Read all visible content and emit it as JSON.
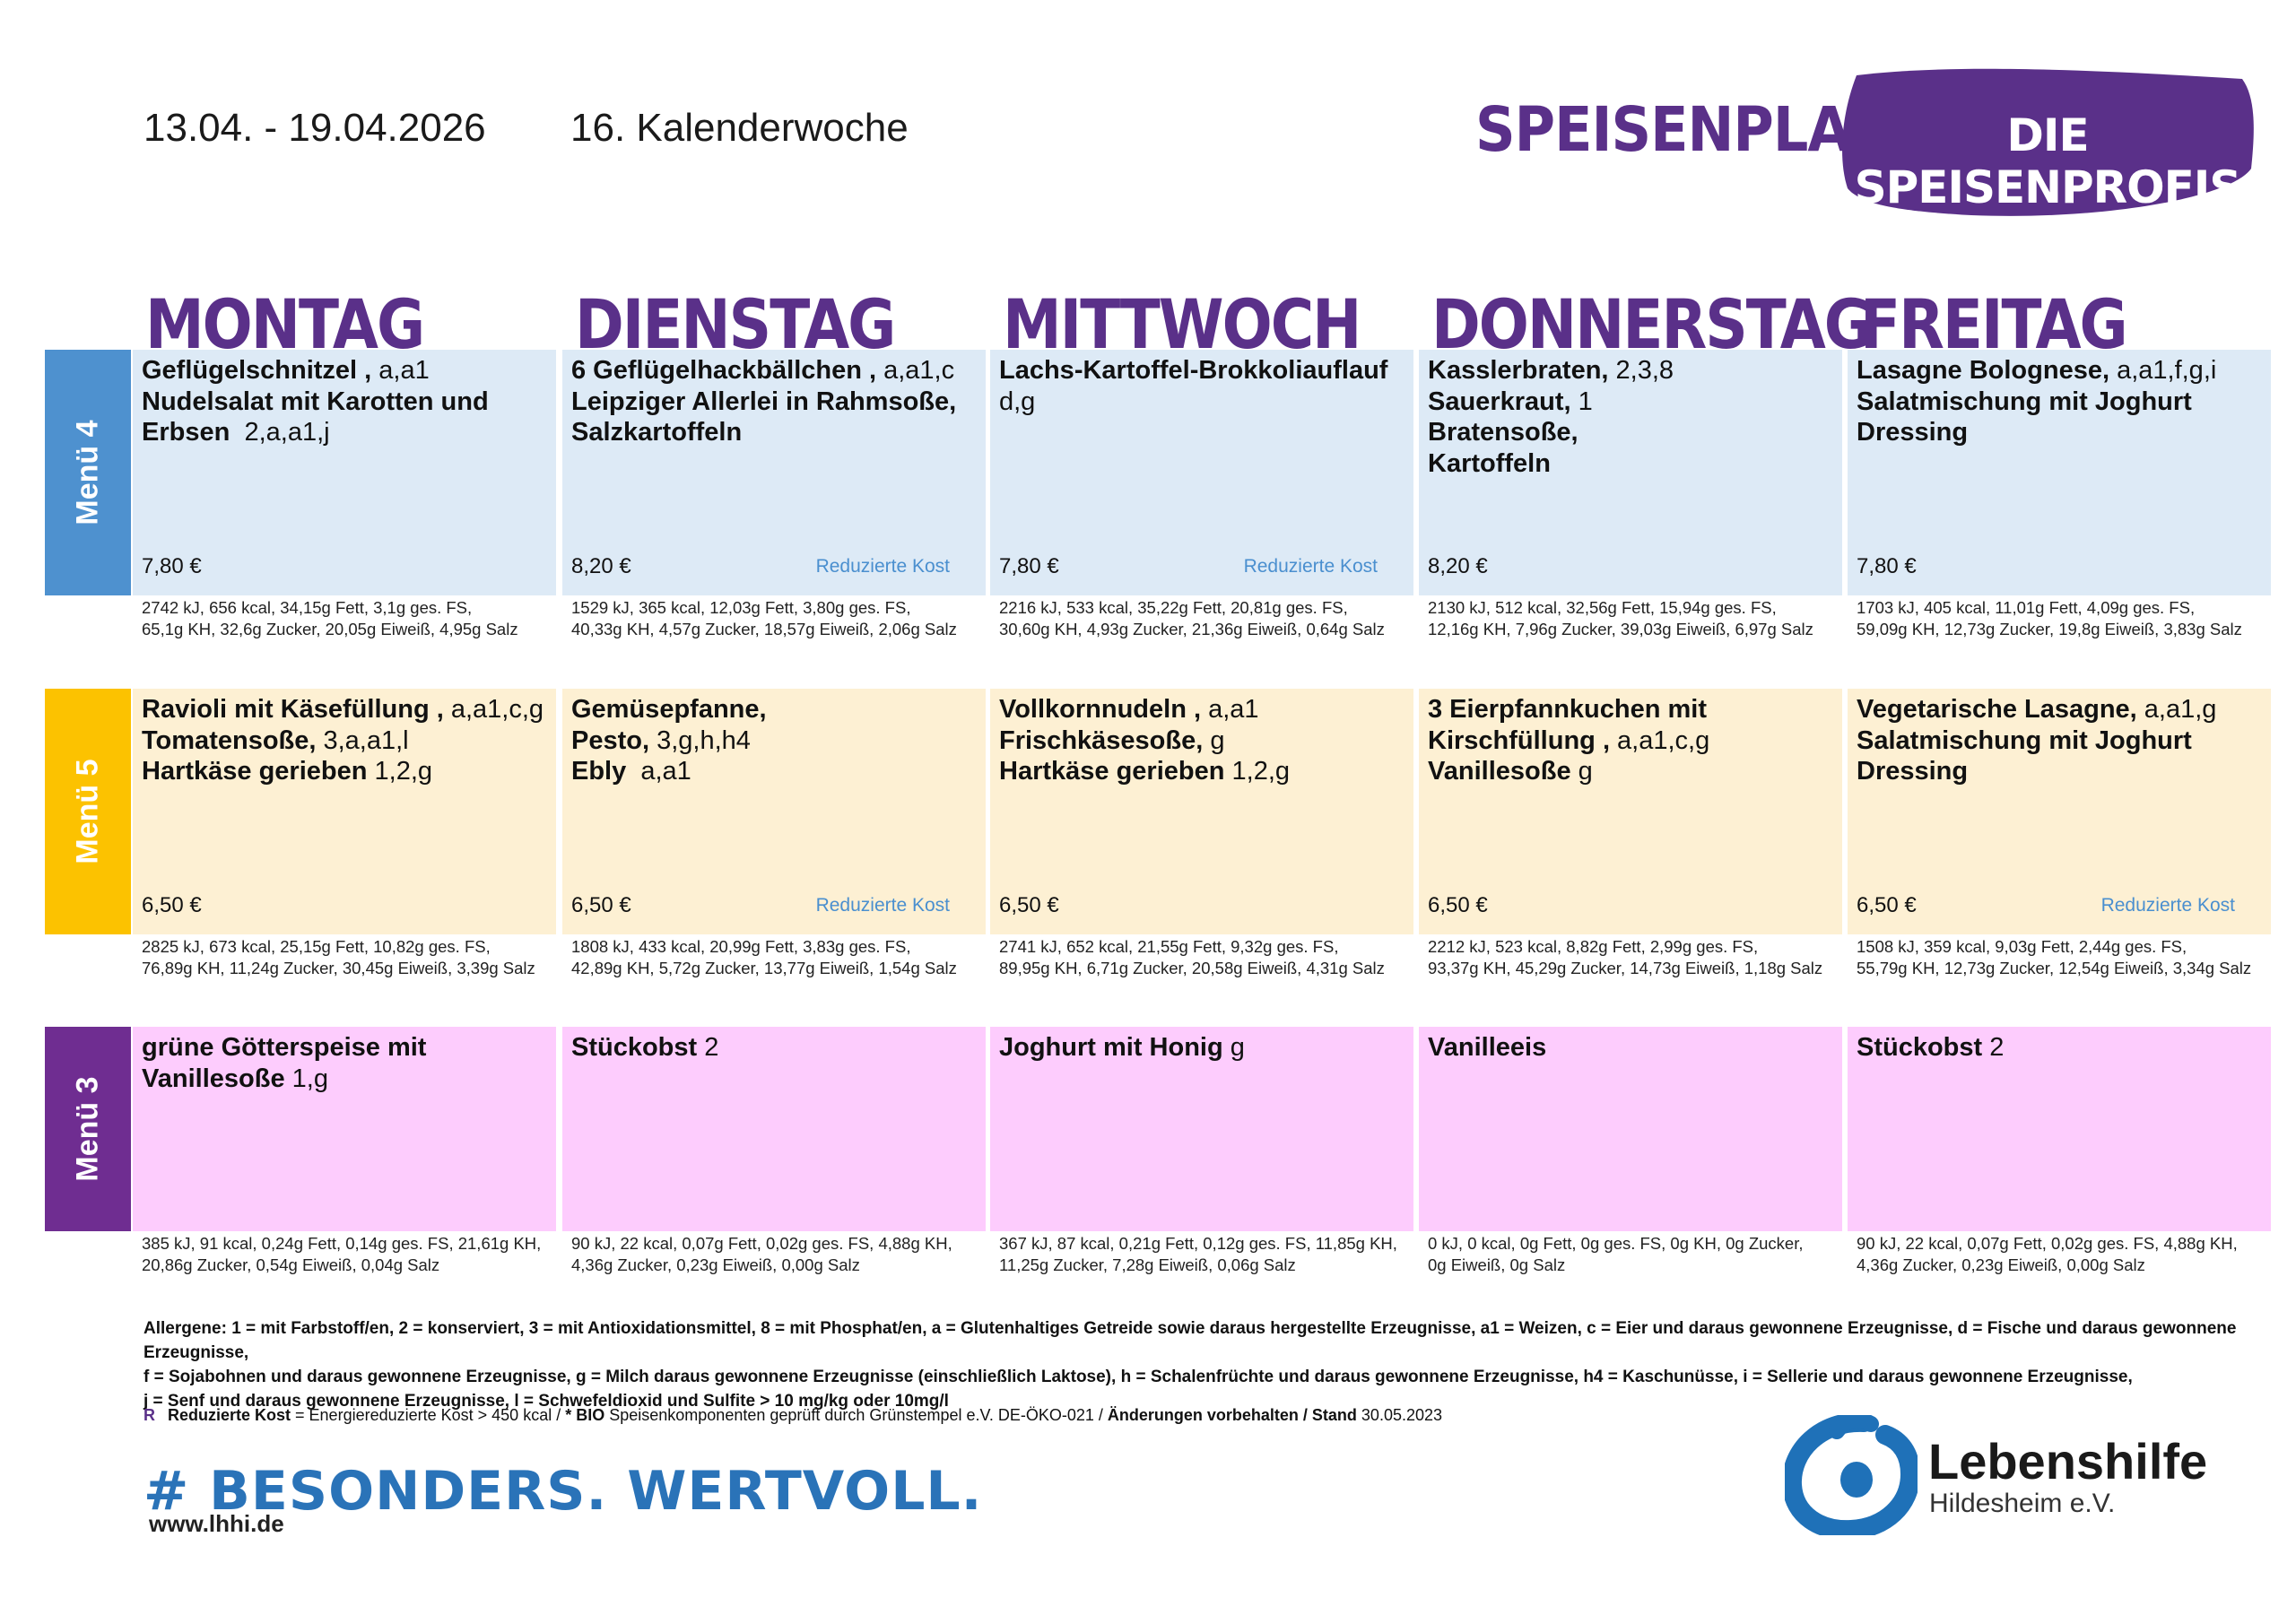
{
  "header": {
    "date_range": "13.04. - 19.04.2026",
    "week": "16. Kalenderwoche",
    "title": "SPEISENPLAN",
    "badge": "DIE SPEISENPROFIS"
  },
  "days": [
    "MONTAG",
    "DIENSTAG",
    "MITTWOCH",
    "DONNERSTAG",
    "FREITAG"
  ],
  "menus": [
    {
      "label": "Menü 4",
      "color": "#4e91cf",
      "bg": "#ddeaf6",
      "cells": [
        {
          "lines": [
            {
              "b": "Geflügelschnitzel ,",
              "t": " a,a1"
            },
            {
              "b": "Nudelsalat mit Karotten und",
              "t": ""
            },
            {
              "b": "Erbsen",
              "t": "  2,a,a1,j"
            }
          ],
          "price": "7,80 €",
          "rk": "",
          "nut1": "2742 kJ, 656 kcal, 34,15g Fett, 3,1g ges. FS,",
          "nut2": "65,1g KH, 32,6g Zucker, 20,05g Eiweiß, 4,95g Salz"
        },
        {
          "lines": [
            {
              "b": "6 Geflügelhackbällchen ,",
              "t": " a,a1,c"
            },
            {
              "b": "Leipziger Allerlei in Rahmsoße,",
              "t": ""
            },
            {
              "b": "Salzkartoffeln",
              "t": ""
            }
          ],
          "price": "8,20 €",
          "rk": "Reduzierte Kost",
          "nut1": "1529 kJ, 365 kcal, 12,03g Fett, 3,80g ges. FS,",
          "nut2": "40,33g KH, 4,57g Zucker, 18,57g Eiweiß, 2,06g Salz"
        },
        {
          "lines": [
            {
              "b": "Lachs-Kartoffel-Brokkoliauflauf",
              "t": ""
            },
            {
              "b": "",
              "t": "d,g"
            }
          ],
          "price": "7,80 €",
          "rk": "Reduzierte Kost",
          "nut1": "2216 kJ, 533 kcal, 35,22g Fett, 20,81g ges. FS,",
          "nut2": "30,60g KH, 4,93g Zucker, 21,36g Eiweiß, 0,64g Salz"
        },
        {
          "lines": [
            {
              "b": "Kasslerbraten,",
              "t": " 2,3,8"
            },
            {
              "b": "Sauerkraut,",
              "t": " 1"
            },
            {
              "b": "Bratensoße,",
              "t": ""
            },
            {
              "b": "Kartoffeln",
              "t": ""
            }
          ],
          "price": "8,20 €",
          "rk": "",
          "nut1": "2130 kJ, 512 kcal, 32,56g Fett, 15,94g ges. FS,",
          "nut2": "12,16g KH, 7,96g Zucker, 39,03g Eiweiß, 6,97g Salz"
        },
        {
          "lines": [
            {
              "b": "Lasagne Bolognese,",
              "t": " a,a1,f,g,i"
            },
            {
              "b": "Salatmischung mit Joghurt",
              "t": ""
            },
            {
              "b": "Dressing",
              "t": ""
            }
          ],
          "price": "7,80 €",
          "rk": "",
          "nut1": "1703 kJ, 405 kcal, 11,01g Fett, 4,09g ges. FS,",
          "nut2": "59,09g KH, 12,73g Zucker, 19,8g Eiweiß, 3,83g Salz"
        }
      ]
    },
    {
      "label": "Menü 5",
      "color": "#fcc200",
      "bg": "#fdf0d3",
      "cells": [
        {
          "lines": [
            {
              "b": "Ravioli mit Käsefüllung ,",
              "t": " a,a1,c,g"
            },
            {
              "b": "Tomatensoße,",
              "t": " 3,a,a1,l"
            },
            {
              "b": "Hartkäse gerieben",
              "t": " 1,2,g"
            }
          ],
          "price": "6,50 €",
          "rk": "",
          "nut1": "2825 kJ, 673 kcal, 25,15g Fett, 10,82g ges. FS,",
          "nut2": "76,89g KH, 11,24g Zucker, 30,45g Eiweiß, 3,39g Salz"
        },
        {
          "lines": [
            {
              "b": "Gemüsepfanne,",
              "t": ""
            },
            {
              "b": "Pesto,",
              "t": " 3,g,h,h4"
            },
            {
              "b": "Ebly",
              "t": "  a,a1"
            }
          ],
          "price": "6,50 €",
          "rk": "Reduzierte Kost",
          "nut1": "1808 kJ, 433 kcal, 20,99g Fett, 3,83g ges. FS,",
          "nut2": "42,89g KH, 5,72g Zucker, 13,77g Eiweiß, 1,54g Salz"
        },
        {
          "lines": [
            {
              "b": "Vollkornnudeln ,",
              "t": " a,a1"
            },
            {
              "b": "Frischkäsesoße,",
              "t": " g"
            },
            {
              "b": "Hartkäse gerieben",
              "t": " 1,2,g"
            }
          ],
          "price": "6,50 €",
          "rk": "",
          "nut1": "2741 kJ, 652 kcal, 21,55g Fett, 9,32g ges. FS,",
          "nut2": "89,95g KH, 6,71g Zucker, 20,58g Eiweiß, 4,31g Salz"
        },
        {
          "lines": [
            {
              "b": "3 Eierpfannkuchen mit",
              "t": ""
            },
            {
              "b": "Kirschfüllung ,",
              "t": " a,a1,c,g"
            },
            {
              "b": "Vanillesoße",
              "t": " g"
            }
          ],
          "price": "6,50 €",
          "rk": "",
          "nut1": "2212 kJ, 523 kcal, 8,82g Fett, 2,99g ges. FS,",
          "nut2": "93,37g KH, 45,29g Zucker, 14,73g Eiweiß, 1,18g Salz"
        },
        {
          "lines": [
            {
              "b": "Vegetarische Lasagne,",
              "t": " a,a1,g"
            },
            {
              "b": "Salatmischung mit Joghurt",
              "t": ""
            },
            {
              "b": "Dressing",
              "t": ""
            }
          ],
          "price": "6,50 €",
          "rk": "Reduzierte Kost",
          "nut1": "1508 kJ, 359 kcal, 9,03g Fett, 2,44g ges. FS,",
          "nut2": "55,79g KH, 12,73g Zucker, 12,54g Eiweiß, 3,34g Salz"
        }
      ]
    },
    {
      "label": "Menü 3",
      "color": "#6f2d91",
      "bg": "#fdccfd",
      "cells": [
        {
          "lines": [
            {
              "b": "grüne Götterspeise mit",
              "t": ""
            },
            {
              "b": "Vanillesoße",
              "t": " 1,g"
            }
          ],
          "price": "",
          "rk": "",
          "nut1": "385 kJ, 91 kcal, 0,24g Fett, 0,14g ges. FS, 21,61g KH,",
          "nut2": "20,86g Zucker, 0,54g Eiweiß, 0,04g Salz"
        },
        {
          "lines": [
            {
              "b": "Stückobst",
              "t": " 2"
            }
          ],
          "price": "",
          "rk": "",
          "nut1": "90 kJ, 22 kcal, 0,07g Fett, 0,02g ges. FS, 4,88g KH,",
          "nut2": "4,36g Zucker, 0,23g Eiweiß, 0,00g Salz"
        },
        {
          "lines": [
            {
              "b": "Joghurt mit Honig",
              "t": " g"
            }
          ],
          "price": "",
          "rk": "",
          "nut1": "367 kJ, 87 kcal, 0,21g Fett, 0,12g ges. FS, 11,85g KH,",
          "nut2": "11,25g Zucker, 7,28g Eiweiß, 0,06g Salz"
        },
        {
          "lines": [
            {
              "b": "Vanilleeis",
              "t": ""
            }
          ],
          "price": "",
          "rk": "",
          "nut1": "0 kJ, 0 kcal, 0g Fett, 0g ges. FS, 0g KH, 0g Zucker,",
          "nut2": "0g Eiweiß, 0g Salz"
        },
        {
          "lines": [
            {
              "b": "Stückobst",
              "t": " 2"
            }
          ],
          "price": "",
          "rk": "",
          "nut1": "90 kJ, 22 kcal, 0,07g Fett, 0,02g ges. FS, 4,88g KH,",
          "nut2": "4,36g Zucker, 0,23g Eiweiß, 0,00g Salz"
        }
      ]
    }
  ],
  "footer": {
    "allergens_1": "Allergene: 1 = mit Farbstoff/en, 2 = konserviert, 3 = mit Antioxidationsmittel, 8 = mit Phosphat/en, a = Glutenhaltiges Getreide sowie daraus hergestellte Erzeugnisse, a1 = Weizen, c = Eier und daraus gewonnene Erzeugnisse, d = Fische und daraus gewonnene Erzeugnisse,",
    "allergens_2": "f = Sojabohnen und daraus gewonnene Erzeugnisse, g = Milch daraus gewonnene Erzeugnisse (einschließlich Laktose), h = Schalenfrüchte und daraus gewonnene Erzeugnisse, h4 = Kaschunüsse, i = Sellerie und daraus gewonnene Erzeugnisse,",
    "allergens_3": "j = Senf und daraus gewonnene Erzeugnisse, l = Schwefeldioxid und Sulfite > 10 mg/kg oder 10mg/l",
    "legend_r": "R",
    "legend_rk": "Reduzierte Kost",
    "legend_rk_desc": " = Energiereduzierte Kost > 450 kcal / ",
    "legend_bio": "* BIO",
    "legend_bio_desc": " Speisenkomponenten geprüft durch Grünstempel e.V. DE-ÖKO-021 / ",
    "legend_change": "Änderungen vorbehalten / Stand",
    "legend_date": " 30.05.2023",
    "hashtag": "# BESONDERS. WERTVOLL.",
    "website": "www.lhhi.de",
    "org_name": "Lebenshilfe",
    "org_sub": "Hildesheim e.V."
  },
  "colors": {
    "brand_purple": "#5a3089",
    "accent_blue": "#2a73b8",
    "reduced_text": "#4a8fcf"
  }
}
